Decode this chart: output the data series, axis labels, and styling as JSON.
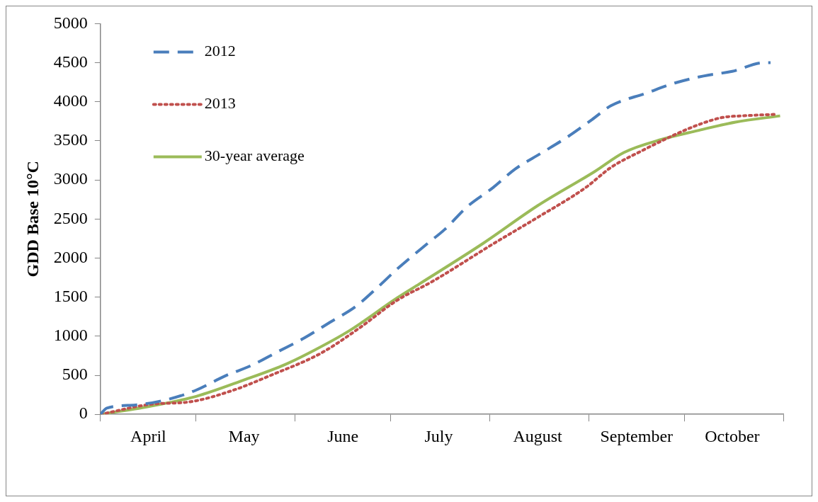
{
  "chart_data": {
    "type": "line",
    "ylabel": "GDD Base 10°C",
    "xlim": [
      "--04-01",
      "--11-01"
    ],
    "xticks": [
      {
        "value": "--04-01",
        "label": null
      },
      {
        "value": "--04-16",
        "label": "April"
      },
      {
        "value": "--05-01",
        "label": null
      },
      {
        "value": "--05-16",
        "label": "May"
      },
      {
        "value": "--06-01",
        "label": null
      },
      {
        "value": "--06-16",
        "label": "June"
      },
      {
        "value": "--07-01",
        "label": null
      },
      {
        "value": "--07-16",
        "label": "July"
      },
      {
        "value": "--08-01",
        "label": null
      },
      {
        "value": "--08-16",
        "label": "August"
      },
      {
        "value": "--09-01",
        "label": null
      },
      {
        "value": "--09-16",
        "label": "September"
      },
      {
        "value": "--10-01",
        "label": null
      },
      {
        "value": "--10-16",
        "label": "October"
      },
      {
        "value": "--11-01",
        "label": null
      }
    ],
    "ylim": [
      0,
      5000
    ],
    "yticks": [
      0,
      500,
      1000,
      1500,
      2000,
      2500,
      3000,
      3500,
      4000,
      4500,
      5000
    ],
    "grid": false,
    "legend": "top left",
    "marker": "none",
    "series": [
      {
        "name": "2012",
        "color": "#4a7ebb",
        "line_style": "dashed",
        "x": [
          "--04-01",
          "--04-03",
          "--04-12",
          "--04-22",
          "--05-01",
          "--05-10",
          "--05-18",
          "--05-27",
          "--06-04",
          "--06-12",
          "--06-20",
          "--06-27",
          "--07-03",
          "--07-12",
          "--07-18",
          "--07-25",
          "--08-02",
          "--08-09",
          "--08-17",
          "--08-25",
          "--09-02",
          "--09-08",
          "--09-19",
          "--09-28",
          "--10-07",
          "--10-16",
          "--10-26",
          "--10-28"
        ],
        "values": [
          0,
          80,
          120,
          190,
          310,
          490,
          620,
          810,
          980,
          1180,
          1380,
          1630,
          1860,
          2170,
          2370,
          2660,
          2900,
          3140,
          3340,
          3540,
          3770,
          3950,
          4110,
          4240,
          4330,
          4390,
          4500,
          4500
        ]
      },
      {
        "name": "2013",
        "color": "#c0504d",
        "line_style": "dotted",
        "x": [
          "--04-01",
          "--04-17",
          "--04-29",
          "--05-12",
          "--05-25",
          "--06-09",
          "--06-21",
          "--07-03",
          "--07-14",
          "--08-02",
          "--08-16",
          "--08-31",
          "--09-08",
          "--09-18",
          "--09-27",
          "--10-05",
          "--10-13",
          "--10-19",
          "--10-30"
        ],
        "values": [
          0,
          130,
          160,
          300,
          510,
          780,
          1100,
          1460,
          1700,
          2180,
          2520,
          2900,
          3160,
          3380,
          3560,
          3700,
          3800,
          3820,
          3840
        ]
      },
      {
        "name": "30-year average",
        "color": "#9bbb59",
        "line_style": "solid",
        "x": [
          "--04-01",
          "--04-16",
          "--05-01",
          "--05-16",
          "--05-29",
          "--06-07",
          "--06-18",
          "--07-03",
          "--07-10",
          "--07-30",
          "--08-16",
          "--09-03",
          "--09-12",
          "--09-24",
          "--10-05",
          "--10-17",
          "--10-31"
        ],
        "values": [
          0,
          100,
          230,
          440,
          640,
          820,
          1070,
          1490,
          1670,
          2190,
          2670,
          3110,
          3350,
          3520,
          3630,
          3740,
          3820
        ]
      }
    ]
  }
}
